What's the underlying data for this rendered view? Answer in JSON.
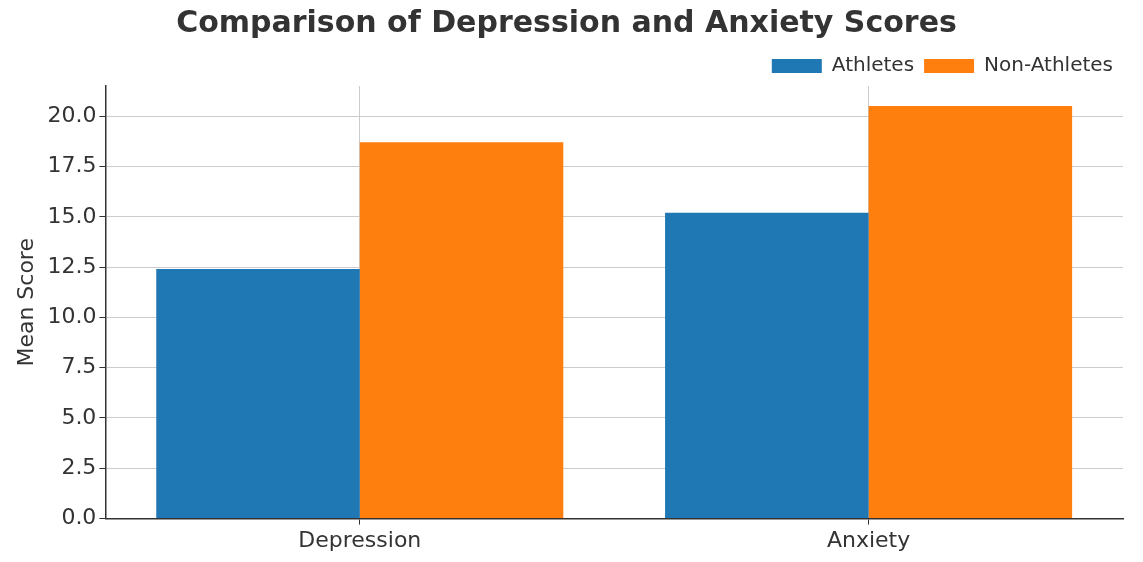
{
  "chart_data": {
    "type": "bar",
    "title": "Comparison of Depression and Anxiety Scores",
    "ylabel": "Mean Score",
    "categories": [
      "Depression",
      "Anxiety"
    ],
    "series": [
      {
        "name": "Athletes",
        "color": "#1f77b4",
        "values": [
          12.4,
          15.2
        ]
      },
      {
        "name": "Non-Athletes",
        "color": "#ff7f0e",
        "values": [
          18.7,
          20.5
        ]
      }
    ],
    "ylim": [
      0,
      21.5
    ],
    "yticks": [
      {
        "value": 0,
        "label": "0.0"
      },
      {
        "value": 2.5,
        "label": "2.5"
      },
      {
        "value": 5,
        "label": "5.0"
      },
      {
        "value": 7.5,
        "label": "7.5"
      },
      {
        "value": 10,
        "label": "10.0"
      },
      {
        "value": 12.5,
        "label": "12.5"
      },
      {
        "value": 15,
        "label": "15.0"
      },
      {
        "value": 17.5,
        "label": "17.5"
      },
      {
        "value": 20,
        "label": "20.0"
      }
    ],
    "grid": true,
    "legend": "top right"
  }
}
